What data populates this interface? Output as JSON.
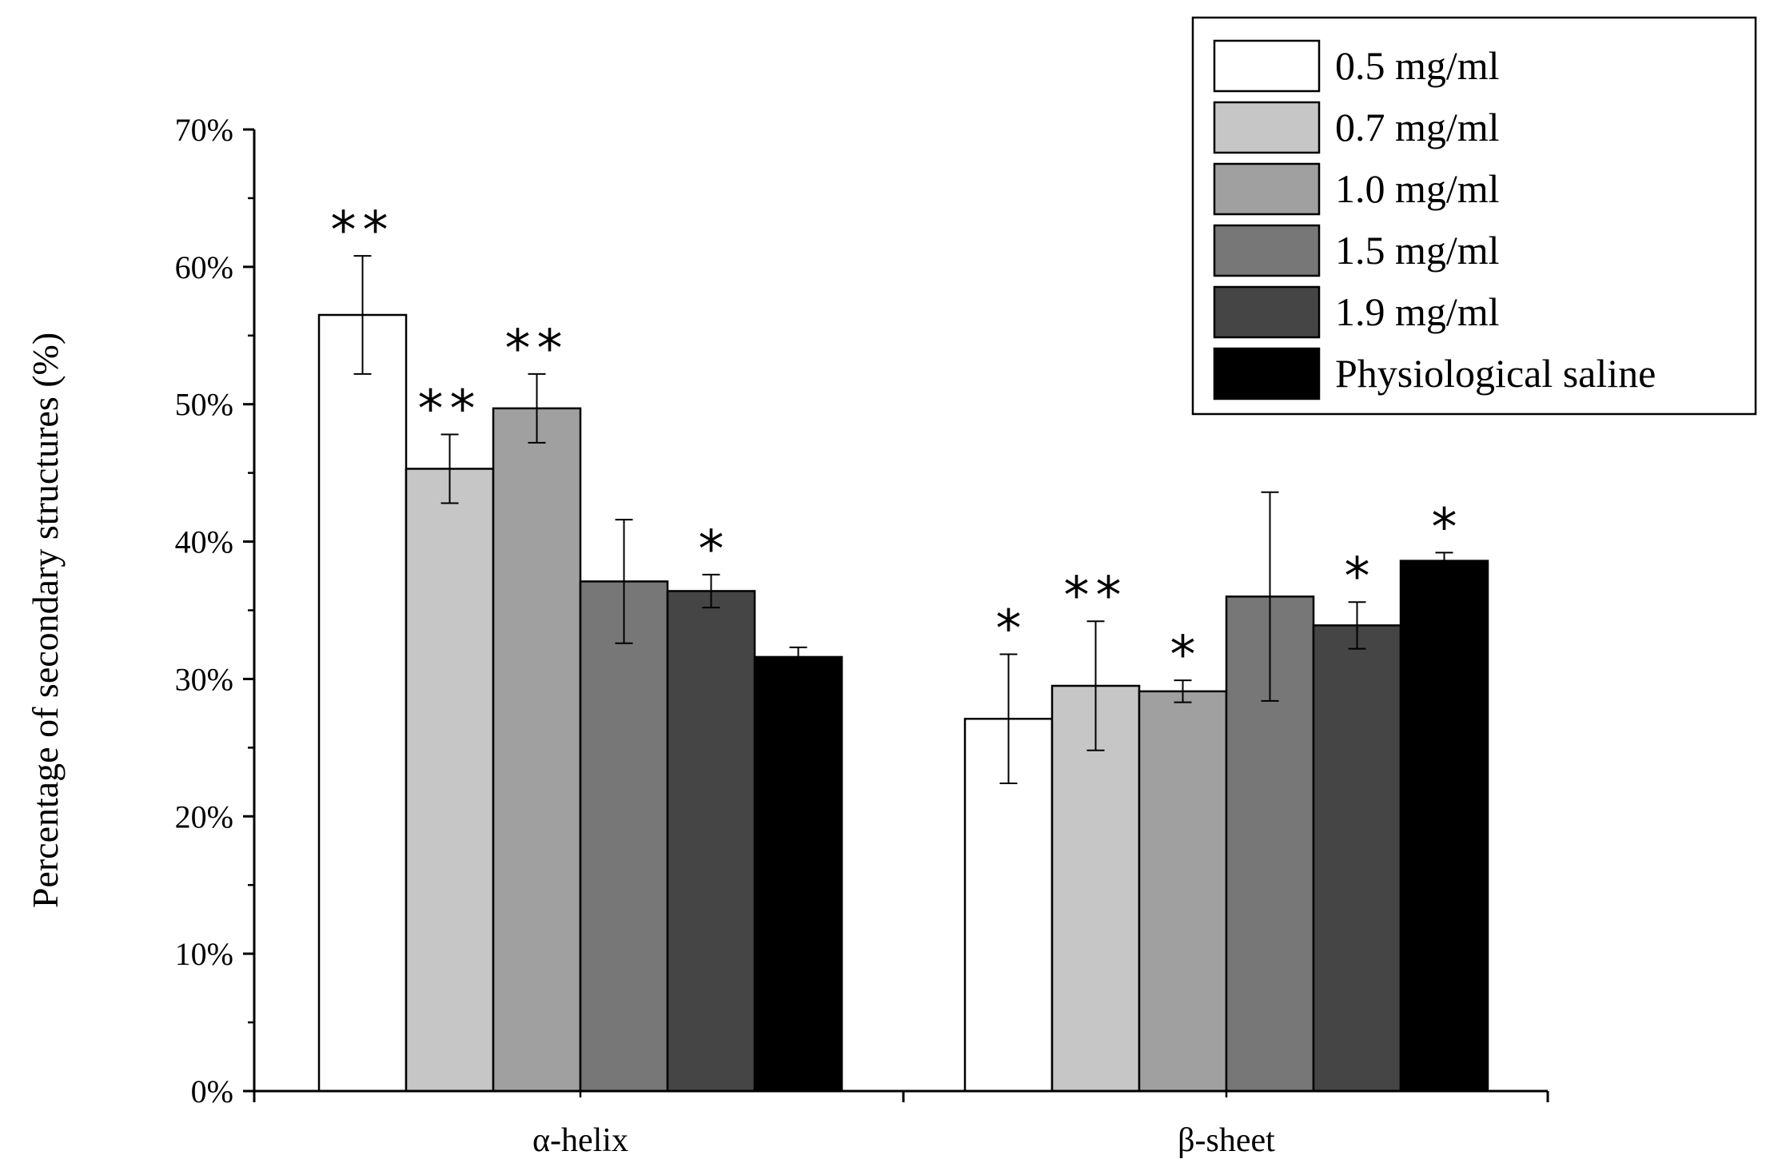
{
  "chart_data": {
    "type": "bar",
    "title": "",
    "xlabel": "",
    "ylabel": "Percentage of secondary structures (%)",
    "ylim": [
      0,
      70
    ],
    "yticks": [
      0,
      10,
      20,
      30,
      40,
      50,
      60,
      70
    ],
    "ytick_labels": [
      "0%",
      "10%",
      "20%",
      "30%",
      "40%",
      "50%",
      "60%",
      "70%"
    ],
    "categories": [
      "α-helix",
      "β-sheet"
    ],
    "grid": false,
    "legend_position": "top-right",
    "series": [
      {
        "name": "0.5 mg/ml",
        "color": "#ffffff",
        "values": [
          56.5,
          27.1
        ],
        "errors": [
          4.3,
          4.7
        ],
        "significance": [
          "**",
          "*"
        ]
      },
      {
        "name": "0.7 mg/ml",
        "color": "#c6c6c6",
        "values": [
          45.3,
          29.5
        ],
        "errors": [
          2.5,
          4.7
        ],
        "significance": [
          "**",
          "**"
        ]
      },
      {
        "name": "1.0 mg/ml",
        "color": "#a0a0a0",
        "values": [
          49.7,
          29.1
        ],
        "errors": [
          2.5,
          0.8
        ],
        "significance": [
          "**",
          "*"
        ]
      },
      {
        "name": "1.5 mg/ml",
        "color": "#777777",
        "values": [
          37.1,
          36.0
        ],
        "errors": [
          4.5,
          7.6
        ],
        "significance": [
          "",
          ""
        ]
      },
      {
        "name": "1.9 mg/ml",
        "color": "#454545",
        "values": [
          36.4,
          33.9
        ],
        "errors": [
          1.2,
          1.7
        ],
        "significance": [
          "*",
          "*"
        ]
      },
      {
        "name": "Physiological saline",
        "color": "#000000",
        "values": [
          31.6,
          38.6
        ],
        "errors": [
          0.7,
          0.6
        ],
        "significance": [
          "",
          "*"
        ]
      }
    ]
  }
}
